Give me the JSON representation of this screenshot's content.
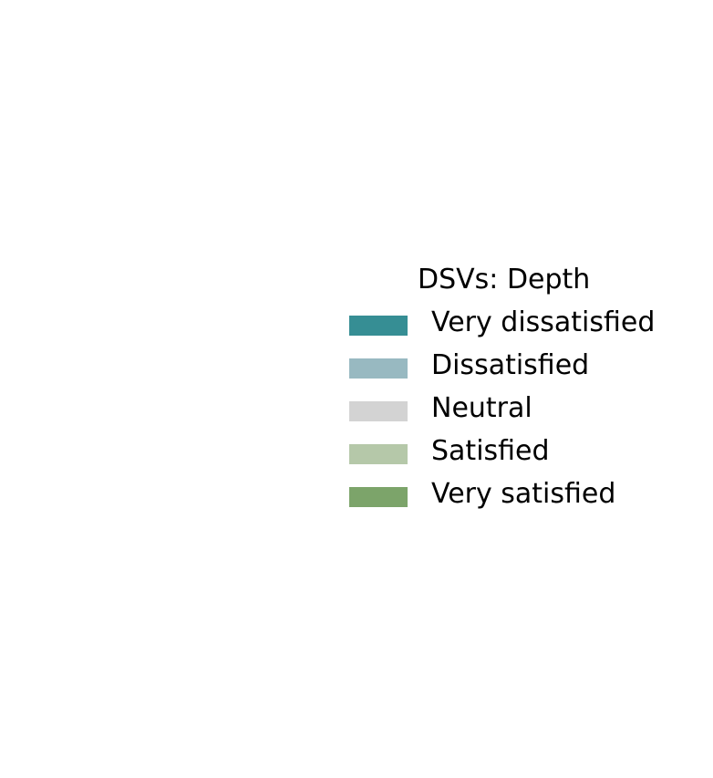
{
  "chart_data": {
    "type": "bar",
    "title": "",
    "xlabel": "",
    "ylabel": "",
    "categories": [],
    "grid": false,
    "legend": {
      "title": "DSVs: Depth",
      "placement": "center-right",
      "entries": [
        {
          "label": "Very dissatisfied",
          "color": "#368e94"
        },
        {
          "label": "Dissatisfied",
          "color": "#98b9c1"
        },
        {
          "label": "Neutral",
          "color": "#d3d3d3"
        },
        {
          "label": "Satisfied",
          "color": "#b5c8a9"
        },
        {
          "label": "Very satisfied",
          "color": "#7ca46a"
        }
      ]
    },
    "series": [
      {
        "name": "Very dissatisfied",
        "color": "#368e94",
        "values": []
      },
      {
        "name": "Dissatisfied",
        "color": "#98b9c1",
        "values": []
      },
      {
        "name": "Neutral",
        "color": "#d3d3d3",
        "values": []
      },
      {
        "name": "Satisfied",
        "color": "#b5c8a9",
        "values": []
      },
      {
        "name": "Very satisfied",
        "color": "#7ca46a",
        "values": []
      }
    ]
  }
}
